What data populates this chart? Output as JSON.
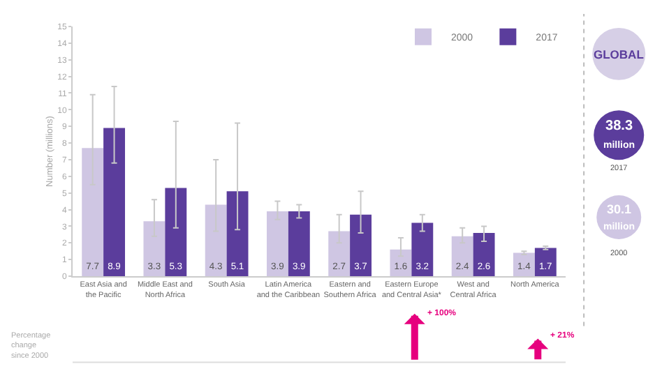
{
  "chart_data": {
    "type": "bar",
    "ylabel": "Number (millions)",
    "categories": [
      "East Asia and the Pacific",
      "Middle East and North Africa",
      "South Asia",
      "Latin America and the Caribbean",
      "Eastern and Southern Africa",
      "Eastern Europe and Central Asia*",
      "West and Central Africa",
      "North America"
    ],
    "series": [
      {
        "name": "2000",
        "color": "#cfc6e3",
        "values": [
          7.7,
          3.3,
          4.3,
          3.9,
          2.7,
          1.6,
          2.4,
          1.4
        ],
        "errors": [
          [
            5.5,
            10.9
          ],
          [
            2.4,
            4.6
          ],
          [
            2.7,
            7.0
          ],
          [
            3.4,
            4.5
          ],
          [
            2.0,
            3.7
          ],
          [
            1.2,
            2.3
          ],
          [
            2.0,
            2.9
          ],
          [
            1.3,
            1.5
          ]
        ]
      },
      {
        "name": "2017",
        "color": "#5b3d9c",
        "values": [
          8.9,
          5.3,
          5.1,
          3.9,
          3.7,
          3.2,
          2.6,
          1.7
        ],
        "errors": [
          [
            6.8,
            11.4
          ],
          [
            2.9,
            9.3
          ],
          [
            2.8,
            9.2
          ],
          [
            3.5,
            4.3
          ],
          [
            2.6,
            5.1
          ],
          [
            2.7,
            3.7
          ],
          [
            2.1,
            3.0
          ],
          [
            1.6,
            1.8
          ]
        ]
      }
    ],
    "ylim": [
      0,
      15
    ],
    "yticks": [
      0,
      1,
      2,
      3,
      4,
      5,
      6,
      7,
      8,
      9,
      10,
      11,
      12,
      13,
      14,
      15
    ],
    "data_labels": true,
    "legend": "top right",
    "annotations": [
      "Percentage change since 2000",
      "GLOBAL",
      "38.3 million",
      "2017",
      "30.1 million",
      "2000",
      "+ 100%",
      "+ 21%"
    ]
  }
}
